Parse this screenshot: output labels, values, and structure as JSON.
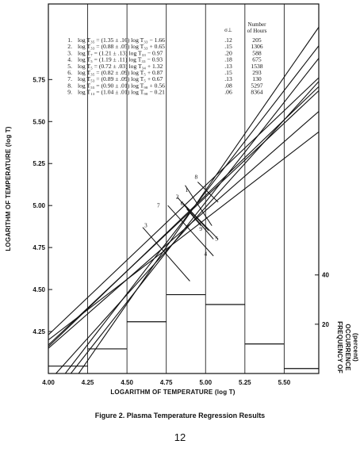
{
  "chart_data": {
    "type": "line",
    "caption": "Figure 2.  Plasma Temperature Regression Results",
    "xlabel": "LOGARITHM OF TEMPERATURE (log T)",
    "ylabel": "LOGARITHM OF TEMPERATURE (log T)",
    "y2label_lines": [
      "FREQUENCY OF",
      "OCCURRENCE",
      "(percent)"
    ],
    "xlim": [
      4.0,
      5.72
    ],
    "ylim": [
      4.0,
      6.2
    ],
    "x_ticks": [
      "4.00",
      "4.25",
      "4.50",
      "4.75",
      "5.00",
      "5.25",
      "5.50"
    ],
    "x_tick_values": [
      4.0,
      4.25,
      4.5,
      4.75,
      5.0,
      5.25,
      5.5
    ],
    "y_ticks": [
      "4.25",
      "4.50",
      "4.75",
      "5.00",
      "5.25",
      "5.50",
      "5.75"
    ],
    "y_tick_values": [
      4.25,
      4.5,
      4.75,
      5.0,
      5.25,
      5.5,
      5.75
    ],
    "y2_ticks": [
      "20",
      "40"
    ],
    "y2_tick_values": [
      20,
      40
    ],
    "y2lim": [
      0,
      150
    ],
    "table_headers": {
      "sigma": "σ⊥",
      "hours": [
        "Number",
        "of Hours"
      ]
    },
    "regressions": [
      {
        "number": "1",
        "label": "1",
        "equation": "log T₃₅ = (1.35 ± .16)  log T₃₃ − 1.66",
        "sigma": ".12",
        "hours": "205",
        "slope": 1.35,
        "intercept": -1.66
      },
      {
        "number": "2",
        "label": "2",
        "equation": "log T₃₃ = (0.88 ± .05)  log T₃₃ + 0.65",
        "sigma": ".15",
        "hours": "1306",
        "slope": 0.88,
        "intercept": 0.65
      },
      {
        "number": "3",
        "label": "3",
        "equation": "log T₇  = (1.21 ± .13)  log T₃₃ − 0.97",
        "sigma": ".20",
        "hours": "588",
        "slope": 1.21,
        "intercept": -0.97
      },
      {
        "number": "4",
        "label": "4",
        "equation": "log T₅  = (1.19 ± .11)  log T₃₃ − 0.93",
        "sigma": ".18",
        "hours": "675",
        "slope": 1.19,
        "intercept": -0.93
      },
      {
        "number": "5",
        "label": "5",
        "equation": "log T₅  = (0.72 ± .03)  log T₃₄ + 1.32",
        "sigma": ".13",
        "hours": "1538",
        "slope": 0.72,
        "intercept": 1.32
      },
      {
        "number": "6",
        "label": "6",
        "equation": "log T₃₅ = (0.82 ± .09)  log T₅  + 0.87",
        "sigma": ".15",
        "hours": "293",
        "slope": 0.82,
        "intercept": 0.87
      },
      {
        "number": "7",
        "label": "7",
        "equation": "log T₅₃ = (0.89 ± .09)  log T₅  + 0.67",
        "sigma": ".13",
        "hours": "130",
        "slope": 0.89,
        "intercept": 0.67
      },
      {
        "number": "8",
        "label": "8",
        "equation": "log T₅₅ = (0.90 ± .01)  log T₉₈ + 0.56",
        "sigma": ".08",
        "hours": "5297",
        "slope": 0.9,
        "intercept": 0.56
      },
      {
        "number": "9",
        "label": "9",
        "equation": "log T₁₃ = (1.04 ± .01)  log T₉₈ − 0.21",
        "sigma": ".06",
        "hours": "8364",
        "slope": 1.04,
        "intercept": -0.21
      }
    ],
    "uncertainty_segments": [
      {
        "x1": 4.87,
        "y1": 5.12,
        "x2": 5.04,
        "y2": 4.88
      },
      {
        "x1": 4.76,
        "y1": 5.0,
        "x2": 5.05,
        "y2": 4.7
      },
      {
        "x1": 4.6,
        "y1": 4.87,
        "x2": 4.9,
        "y2": 4.55
      },
      {
        "x1": 4.82,
        "y1": 5.05,
        "x2": 5.05,
        "y2": 4.8
      },
      {
        "x1": 4.85,
        "y1": 5.02,
        "x2": 5.08,
        "y2": 4.8
      },
      {
        "x1": 4.87,
        "y1": 5.0,
        "x2": 5.02,
        "y2": 4.85
      },
      {
        "x1": 4.88,
        "y1": 4.98,
        "x2": 4.97,
        "y2": 4.88
      },
      {
        "x1": 4.95,
        "y1": 5.14,
        "x2": 5.08,
        "y2": 5.02
      }
    ],
    "frequency_histogram": {
      "bins": [
        [
          4.0,
          4.25
        ],
        [
          4.25,
          4.5
        ],
        [
          4.5,
          4.75
        ],
        [
          4.75,
          5.0
        ],
        [
          5.0,
          5.25
        ],
        [
          5.25,
          5.5
        ],
        [
          5.5,
          5.72
        ]
      ],
      "values": [
        3,
        10,
        21,
        32,
        28,
        12,
        2
      ]
    }
  }
}
